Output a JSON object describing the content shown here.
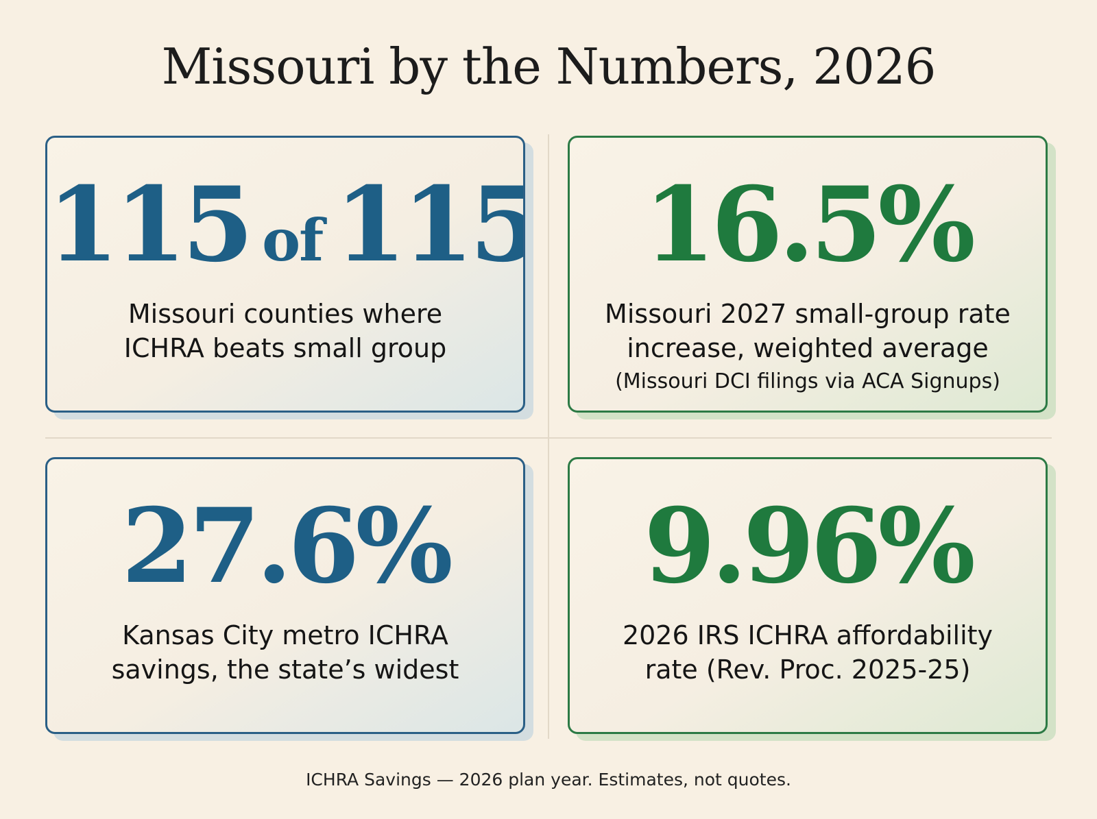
{
  "title": "Missouri by the Numbers, 2026",
  "colors": {
    "background": "#f8f0e3",
    "blue_accent": "#1e5f86",
    "green_accent": "#1f7a3e"
  },
  "cards": [
    {
      "value_a": "115",
      "value_of": "of",
      "value_b": "115",
      "line1": "Missouri counties where",
      "line2": "ICHRA beats small group"
    },
    {
      "value": "16.5%",
      "line1": "Missouri 2027 small-group rate",
      "line2": "increase, weighted average",
      "source": "(Missouri DCI filings via ACA Signups)"
    },
    {
      "value": "27.6%",
      "line1": "Kansas City metro ICHRA",
      "line2": "savings, the state’s widest"
    },
    {
      "value": "9.96%",
      "line1": "2026 IRS ICHRA affordability",
      "line2": "rate (Rev. Proc. 2025-25)"
    }
  ],
  "footer": "ICHRA Savings — 2026 plan year. Estimates, not quotes."
}
